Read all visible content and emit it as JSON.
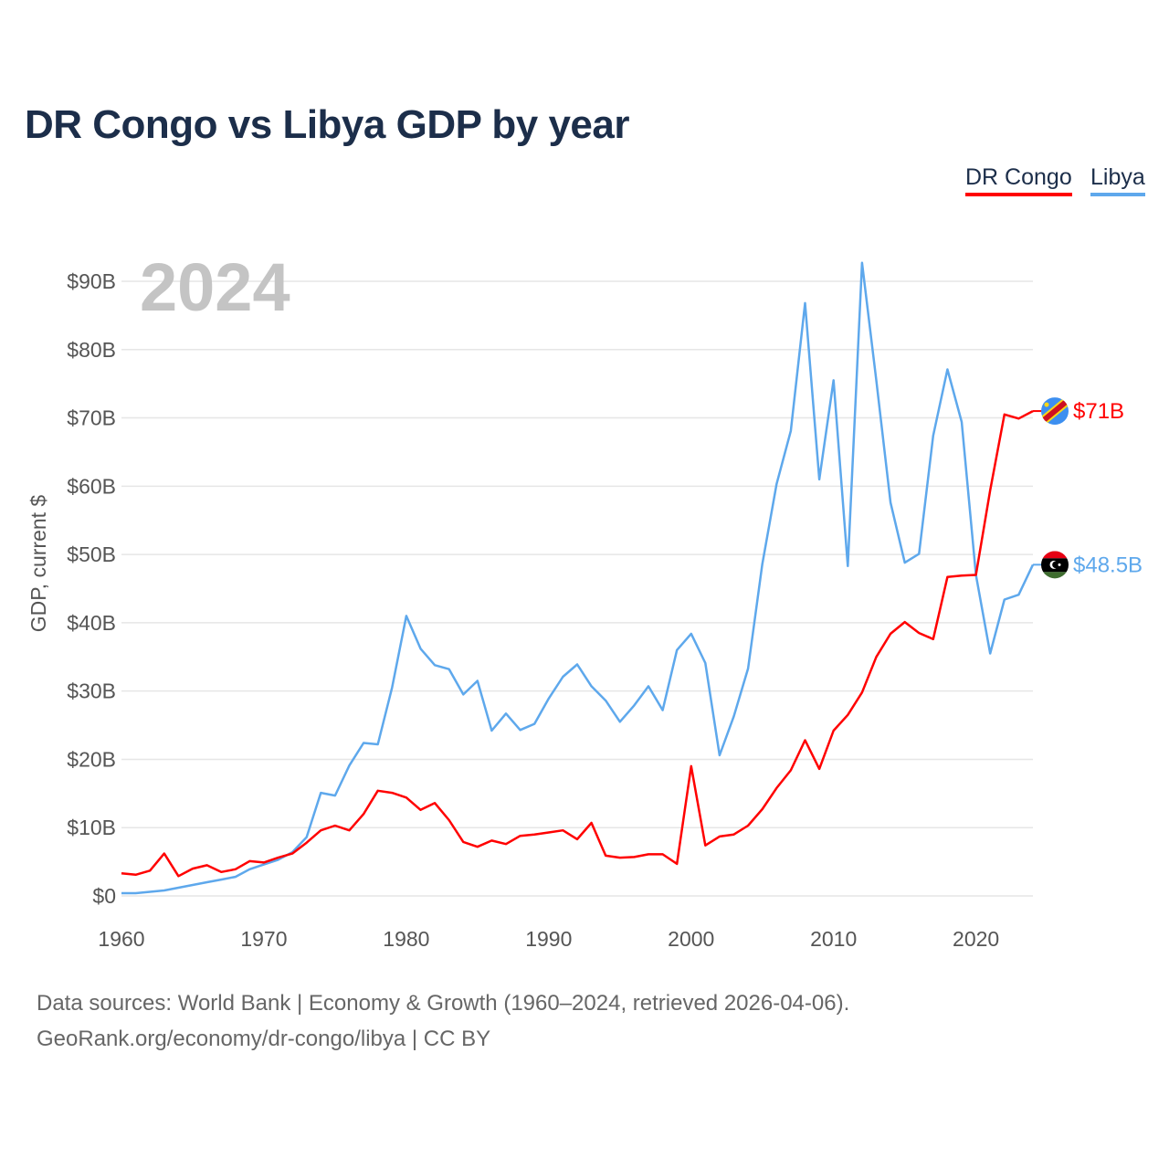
{
  "title": "DR Congo vs Libya GDP by year",
  "legend": [
    {
      "label": "DR Congo",
      "color": "#ff0000"
    },
    {
      "label": "Libya",
      "color": "#5ea8ec"
    }
  ],
  "footer": {
    "line1": "Data sources: World Bank | Economy & Growth (1960–2024, retrieved 2026-04-06).",
    "line2": "GeoRank.org/economy/dr-congo/libya | CC BY"
  },
  "chart_data": {
    "type": "line",
    "title": "DR Congo vs Libya GDP by year",
    "year_watermark": "2024",
    "xlabel": "",
    "ylabel": "GDP, current $",
    "xlim": [
      1960,
      2024
    ],
    "ylim": [
      0,
      90
    ],
    "x_ticks": [
      "1960",
      "1970",
      "1980",
      "1990",
      "2000",
      "2010",
      "2020"
    ],
    "y_ticks": [
      "$0",
      "$10B",
      "$20B",
      "$30B",
      "$40B",
      "$50B",
      "$60B",
      "$70B",
      "$80B",
      "$90B"
    ],
    "grid": true,
    "legend_position": "top-right",
    "unit": "billion current US$",
    "x": [
      1960,
      1961,
      1962,
      1963,
      1964,
      1965,
      1966,
      1967,
      1968,
      1969,
      1970,
      1971,
      1972,
      1973,
      1974,
      1975,
      1976,
      1977,
      1978,
      1979,
      1980,
      1981,
      1982,
      1983,
      1984,
      1985,
      1986,
      1987,
      1988,
      1989,
      1990,
      1991,
      1992,
      1993,
      1994,
      1995,
      1996,
      1997,
      1998,
      1999,
      2000,
      2001,
      2002,
      2003,
      2004,
      2005,
      2006,
      2007,
      2008,
      2009,
      2010,
      2011,
      2012,
      2013,
      2014,
      2015,
      2016,
      2017,
      2018,
      2019,
      2020,
      2021,
      2022,
      2023,
      2024
    ],
    "series": [
      {
        "name": "DR Congo",
        "color": "#ff0000",
        "end_label": "$71B",
        "flag": "dr-congo-flag",
        "values": [
          3.3,
          3.1,
          3.7,
          6.2,
          2.9,
          4.0,
          4.5,
          3.5,
          3.9,
          5.1,
          4.9,
          5.6,
          6.2,
          7.8,
          9.6,
          10.3,
          9.6,
          12.0,
          15.4,
          15.1,
          14.4,
          12.6,
          13.6,
          11.1,
          7.9,
          7.2,
          8.1,
          7.6,
          8.8,
          9.0,
          9.3,
          9.6,
          8.3,
          10.7,
          5.9,
          5.6,
          5.7,
          6.1,
          6.1,
          4.7,
          19.0,
          7.4,
          8.7,
          9.0,
          10.3,
          12.7,
          15.8,
          18.4,
          22.8,
          18.6,
          24.2,
          26.5,
          29.8,
          35.0,
          38.4,
          40.1,
          38.5,
          37.6,
          46.7,
          46.9,
          47.0,
          59.4,
          70.5,
          69.9,
          71.0
        ]
      },
      {
        "name": "Libya",
        "color": "#5ea8ec",
        "end_label": "$48.5B",
        "flag": "libya-flag",
        "values": [
          0.4,
          0.4,
          0.6,
          0.8,
          1.2,
          1.6,
          2.0,
          2.4,
          2.8,
          3.9,
          4.6,
          5.3,
          6.4,
          8.6,
          15.1,
          14.7,
          19.1,
          22.4,
          22.2,
          30.5,
          41.0,
          36.2,
          33.8,
          33.2,
          29.5,
          31.5,
          24.2,
          26.7,
          24.3,
          25.2,
          28.9,
          32.1,
          33.9,
          30.7,
          28.6,
          25.5,
          27.9,
          30.7,
          27.2,
          36.0,
          38.4,
          34.1,
          20.6,
          26.3,
          33.3,
          48.6,
          60.3,
          68.1,
          86.8,
          61.0,
          75.5,
          48.3,
          92.7,
          75.5,
          57.6,
          48.8,
          50.1,
          67.4,
          77.1,
          69.4,
          47.0,
          35.5,
          43.4,
          44.1,
          48.5
        ]
      }
    ]
  }
}
